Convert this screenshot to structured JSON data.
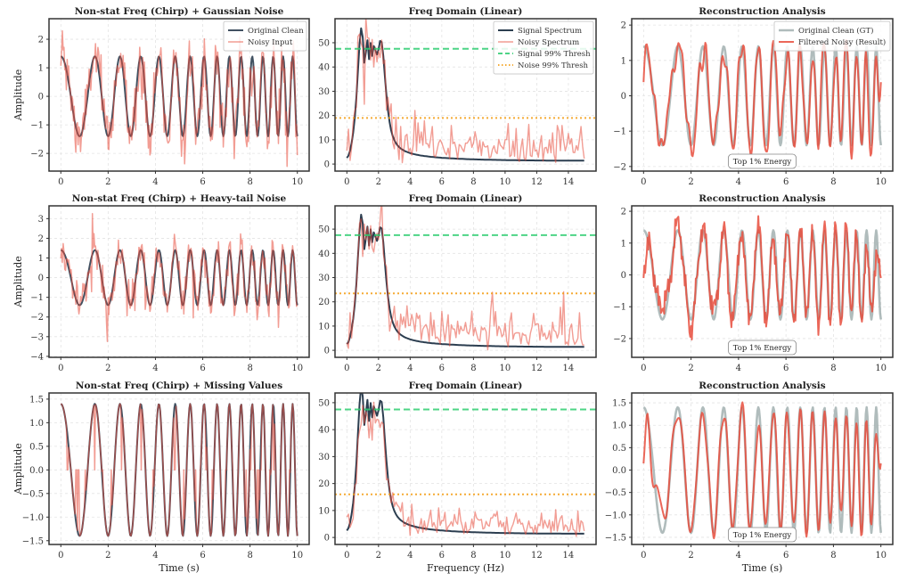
{
  "figure": {
    "background": "#ffffff"
  },
  "colors": {
    "clean": "#2c3e50",
    "noisy": "#e74c3c",
    "filtered": "#e74c3c",
    "ground_truth": "#95a5a6",
    "signal_thresh": "#2ecc71",
    "noise_thresh": "#f39c12"
  },
  "signal_model": {
    "type": "linear chirp",
    "amplitude": 1.4,
    "f_start_hz": 0.55,
    "f_end_hz": 2.55,
    "duration_s": 10,
    "sample_rate_hz": 30
  },
  "chart_data": [
    {
      "type": "line",
      "title": "Non-stat Freq (Chirp) + Gaussian Noise",
      "xlabel": "",
      "ylabel": "Amplitude",
      "xlim": [
        -0.5,
        10.5
      ],
      "ylim": [
        -2.62,
        2.72
      ],
      "grid": true,
      "xticks": [
        "0",
        "2",
        "4",
        "6",
        "8",
        "10"
      ],
      "yticks": [
        "−2",
        "−1",
        "0",
        "1",
        "2"
      ],
      "noise": {
        "kind": "gaussian",
        "std": 0.5
      },
      "series": [
        {
          "name": "Original Clean",
          "source": "clean"
        },
        {
          "name": "Noisy Input",
          "source": "noisy"
        }
      ],
      "legend": {
        "position": "upper right",
        "entries": [
          "Original Clean",
          "Noisy Input"
        ]
      }
    },
    {
      "type": "line",
      "title": "Freq Domain (Linear)",
      "xlabel": "",
      "ylabel": "",
      "xlim": [
        -0.75,
        15.75
      ],
      "ylim": [
        -2.9,
        59.9
      ],
      "grid": true,
      "xticks": [
        "0",
        "2",
        "4",
        "6",
        "8",
        "10",
        "12",
        "14"
      ],
      "yticks": [
        "0",
        "10",
        "20",
        "30",
        "40",
        "50"
      ],
      "series": [
        {
          "name": "Signal Spectrum",
          "source": "clean_spectrum"
        },
        {
          "name": "Noisy Spectrum",
          "source": "noisy_spectrum"
        }
      ],
      "thresholds": [
        {
          "name": "Signal 99% Thresh",
          "value": 47.5,
          "style": "dashed"
        },
        {
          "name": "Noise 99% Thresh",
          "value": 19,
          "style": "dotted"
        }
      ],
      "legend": {
        "position": "upper right",
        "entries": [
          "Signal Spectrum",
          "Noisy Spectrum",
          "Signal 99% Thresh",
          "Noise 99% Thresh"
        ]
      }
    },
    {
      "type": "line",
      "title": "Reconstruction Analysis",
      "xlabel": "",
      "ylabel": "",
      "xlim": [
        -0.5,
        10.5
      ],
      "ylim": [
        -2.13,
        2.18
      ],
      "grid": true,
      "xticks": [
        "0",
        "2",
        "4",
        "6",
        "8",
        "10"
      ],
      "yticks": [
        "−2",
        "−1",
        "0",
        "1",
        "2"
      ],
      "series": [
        {
          "name": "Original Clean (GT)",
          "source": "clean"
        },
        {
          "name": "Filtered Noisy (Result)",
          "source": "filtered"
        }
      ],
      "legend": {
        "position": "upper right",
        "entries": [
          "Original Clean (GT)",
          "Filtered Noisy (Result)"
        ]
      },
      "annotation": "Top 1% Energy"
    },
    {
      "type": "line",
      "title": "Non-stat Freq (Chirp) + Heavy-tail Noise",
      "xlabel": "",
      "ylabel": "Amplitude",
      "xlim": [
        -0.5,
        10.5
      ],
      "ylim": [
        -4.05,
        3.65
      ],
      "grid": true,
      "xticks": [
        "0",
        "2",
        "4",
        "6",
        "8",
        "10"
      ],
      "yticks": [
        "−4",
        "−3",
        "−2",
        "−1",
        "0",
        "1",
        "2",
        "3"
      ],
      "noise": {
        "kind": "heavy-tail",
        "std": 0.45
      },
      "series": [
        {
          "source": "clean"
        },
        {
          "source": "noisy"
        }
      ]
    },
    {
      "type": "line",
      "title": "Freq Domain (Linear)",
      "xlabel": "",
      "ylabel": "",
      "xlim": [
        -0.75,
        15.75
      ],
      "ylim": [
        -2.9,
        59.6
      ],
      "grid": true,
      "xticks": [
        "0",
        "2",
        "4",
        "6",
        "8",
        "10",
        "12",
        "14"
      ],
      "yticks": [
        "0",
        "10",
        "20",
        "30",
        "40",
        "50"
      ],
      "series": [
        {
          "source": "clean_spectrum"
        },
        {
          "source": "noisy_spectrum"
        }
      ],
      "thresholds": [
        {
          "value": 47.5,
          "style": "dashed"
        },
        {
          "value": 23.5,
          "style": "dotted"
        }
      ]
    },
    {
      "type": "line",
      "title": "Reconstruction Analysis",
      "xlabel": "",
      "ylabel": "",
      "xlim": [
        -0.5,
        10.5
      ],
      "ylim": [
        -2.59,
        2.17
      ],
      "grid": true,
      "xticks": [
        "0",
        "2",
        "4",
        "6",
        "8",
        "10"
      ],
      "yticks": [
        "−2",
        "−1",
        "0",
        "1",
        "2"
      ],
      "series": [
        {
          "source": "clean"
        },
        {
          "source": "filtered"
        }
      ],
      "annotation": "Top 1% Energy"
    },
    {
      "type": "line",
      "title": "Non-stat Freq (Chirp) + Missing Values",
      "xlabel": "Time (s)",
      "ylabel": "Amplitude",
      "xlim": [
        -0.5,
        10.5
      ],
      "ylim": [
        -1.58,
        1.63
      ],
      "grid": true,
      "xticks": [
        "0",
        "2",
        "4",
        "6",
        "8",
        "10"
      ],
      "yticks": [
        "−1.5",
        "−1.0",
        "−0.5",
        "0.0",
        "0.5",
        "1.0",
        "1.5"
      ],
      "noise": {
        "kind": "missing",
        "missing_value": 0.0
      },
      "series": [
        {
          "source": "clean"
        },
        {
          "source": "noisy"
        }
      ]
    },
    {
      "type": "line",
      "title": "Freq Domain (Linear)",
      "xlabel": "Frequency (Hz)",
      "ylabel": "",
      "xlim": [
        -0.75,
        15.75
      ],
      "ylim": [
        -2.6,
        53.6
      ],
      "grid": true,
      "xticks": [
        "0",
        "2",
        "4",
        "6",
        "8",
        "10",
        "12",
        "14"
      ],
      "yticks": [
        "0",
        "10",
        "20",
        "30",
        "40",
        "50"
      ],
      "series": [
        {
          "source": "clean_spectrum"
        },
        {
          "source": "noisy_spectrum"
        }
      ],
      "thresholds": [
        {
          "value": 47.5,
          "style": "dashed"
        },
        {
          "value": 16,
          "style": "dotted"
        }
      ]
    },
    {
      "type": "line",
      "title": "Reconstruction Analysis",
      "xlabel": "Time (s)",
      "ylabel": "",
      "xlim": [
        -0.5,
        10.5
      ],
      "ylim": [
        -1.66,
        1.72
      ],
      "grid": true,
      "xticks": [
        "0",
        "2",
        "4",
        "6",
        "8",
        "10"
      ],
      "yticks": [
        "−1.5",
        "−1.0",
        "−0.5",
        "0.0",
        "0.5",
        "1.0",
        "1.5"
      ],
      "series": [
        {
          "source": "clean"
        },
        {
          "source": "filtered"
        }
      ],
      "annotation": "Top 1% Energy"
    }
  ]
}
